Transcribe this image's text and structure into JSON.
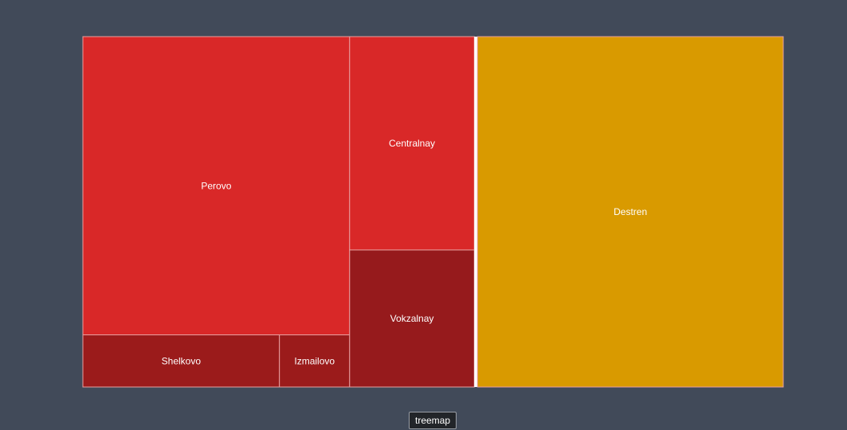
{
  "chart_data": {
    "type": "treemap",
    "groups": [
      {
        "color": "#d92828",
        "items": [
          {
            "name": "Perovo",
            "value": 32.6,
            "color": "#d92828"
          },
          {
            "name": "Shelkovo",
            "value": 4.2,
            "color": "#9b1b1b"
          },
          {
            "name": "Izmailovo",
            "value": 1.5,
            "color": "#9b1b1b"
          },
          {
            "name": "Centralnay",
            "value": 10.9,
            "color": "#d92828"
          },
          {
            "name": "Vokzalnay",
            "value": 7.0,
            "color": "#961a1c"
          }
        ]
      },
      {
        "color": "#d99a00",
        "items": [
          {
            "name": "Destren",
            "value": 43.9,
            "color": "#d99a00"
          }
        ]
      }
    ]
  },
  "controls": {
    "type_button": "treemap"
  }
}
